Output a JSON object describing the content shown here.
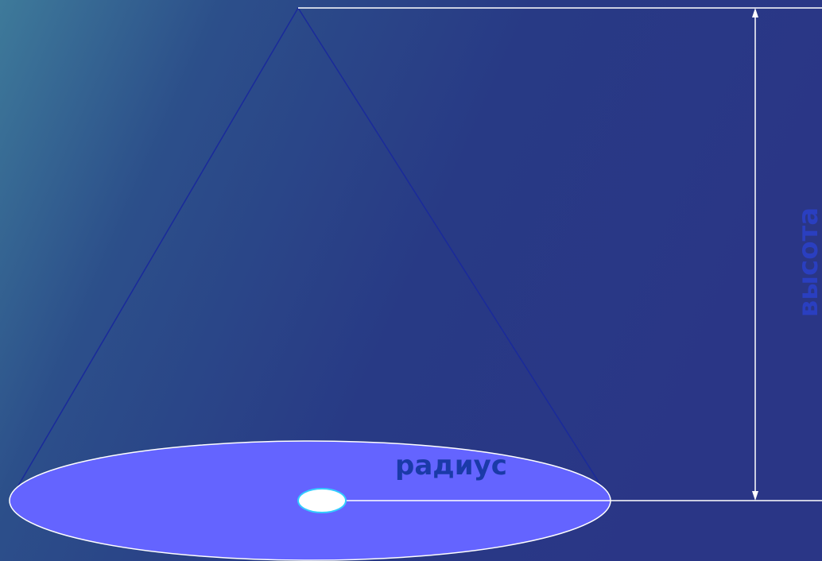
{
  "labels": {
    "radius": "радиус",
    "height": "высота"
  }
}
